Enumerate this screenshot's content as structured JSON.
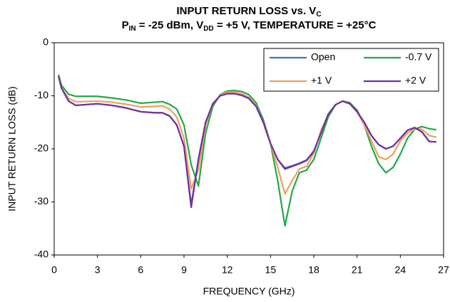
{
  "chart_data": {
    "type": "line",
    "title": [
      "INPUT RETURN LOSS vs. V",
      "C"
    ],
    "subtitle": [
      "P",
      "IN",
      " = -25 dBm, V",
      "DD",
      " = +5 V, TEMPERATURE = +25°C"
    ],
    "xlabel": "FREQUENCY (GHz)",
    "ylabel": "INPUT RETURN LOSS (dB)",
    "x": [
      0.3,
      0.5,
      1,
      1.5,
      2,
      3,
      4,
      5,
      6,
      7,
      7.5,
      8,
      8.5,
      9,
      9.5,
      10,
      10.5,
      11,
      11.5,
      12,
      12.5,
      13,
      13.5,
      14,
      14.5,
      15,
      15.5,
      16,
      16.5,
      17,
      17.5,
      18,
      18.5,
      19,
      19.5,
      20,
      20.5,
      21,
      21.5,
      22,
      22.5,
      23,
      23.5,
      24,
      24.5,
      25,
      25.5,
      26,
      26.5
    ],
    "series": [
      {
        "name": "Open",
        "color": "#4472c4",
        "values": [
          -6.3,
          -8.5,
          -11,
          -11.8,
          -11.7,
          -11.5,
          -11.8,
          -12.3,
          -13,
          -13.2,
          -13.2,
          -13.8,
          -15.5,
          -19.5,
          -30.5,
          -22,
          -15,
          -11.5,
          -10,
          -9.6,
          -9.6,
          -9.9,
          -10.5,
          -12,
          -15,
          -19,
          -22,
          -23.6,
          -23.2,
          -22.7,
          -22.1,
          -20.4,
          -17,
          -13.5,
          -11.7,
          -11,
          -11.5,
          -13,
          -15,
          -17.5,
          -19.2,
          -20,
          -19.5,
          -18,
          -16.5,
          -16,
          -16.8,
          -18.6,
          -18.7
        ]
      },
      {
        "name": "-0.7 V",
        "color": "#22a84a",
        "values": [
          -6,
          -8,
          -9.7,
          -10.1,
          -10.1,
          -10.1,
          -10.4,
          -10.8,
          -11.4,
          -11.2,
          -11.1,
          -11.6,
          -12.5,
          -15.5,
          -23,
          -27,
          -17,
          -12,
          -9.8,
          -9.1,
          -9,
          -9.2,
          -9.8,
          -11.3,
          -14.5,
          -19,
          -26,
          -34.5,
          -28,
          -24.5,
          -24,
          -22,
          -18,
          -14,
          -11.7,
          -11,
          -11.3,
          -12.7,
          -15.5,
          -19.5,
          -22.8,
          -24.5,
          -23.5,
          -21,
          -18,
          -16.3,
          -15.8,
          -16.2,
          -16.4
        ]
      },
      {
        "name": "+1 V",
        "color": "#f0a05a",
        "values": [
          -6.2,
          -8.5,
          -10.5,
          -11.1,
          -11.1,
          -11,
          -11.2,
          -11.6,
          -12.1,
          -12,
          -11.9,
          -12.5,
          -14,
          -18,
          -27.5,
          -24,
          -15.5,
          -11.5,
          -9.9,
          -9.3,
          -9.3,
          -9.6,
          -10.3,
          -11.8,
          -15,
          -19,
          -23.5,
          -28.5,
          -26,
          -23.8,
          -23.3,
          -20.8,
          -16.5,
          -13.5,
          -11.7,
          -11,
          -11.5,
          -13,
          -15.5,
          -18.5,
          -21.5,
          -22,
          -21,
          -18.5,
          -17,
          -16.3,
          -16.3,
          -17.5,
          -17.8
        ]
      },
      {
        "name": "+2 V",
        "color": "#7030a0",
        "values": [
          -6.3,
          -8.5,
          -11,
          -11.8,
          -11.7,
          -11.5,
          -11.8,
          -12.3,
          -13,
          -13.2,
          -13.2,
          -13.8,
          -15.5,
          -19.5,
          -31,
          -22,
          -15,
          -11.5,
          -10,
          -9.6,
          -9.6,
          -9.9,
          -10.5,
          -12,
          -15,
          -19,
          -22,
          -23.8,
          -23.3,
          -22.8,
          -22.2,
          -20.5,
          -17,
          -13.5,
          -11.7,
          -11,
          -11.5,
          -13,
          -15,
          -17.5,
          -19.2,
          -20,
          -19.5,
          -18,
          -16.5,
          -16,
          -16.8,
          -18.6,
          -18.7
        ]
      }
    ],
    "xlim": [
      0,
      27
    ],
    "xticks": [
      0,
      3,
      6,
      9,
      12,
      15,
      18,
      21,
      24,
      27
    ],
    "ylim": [
      -40,
      0
    ],
    "yticks": [
      -40,
      -30,
      -20,
      -10,
      0
    ],
    "grid": false,
    "legend": "upper right"
  }
}
